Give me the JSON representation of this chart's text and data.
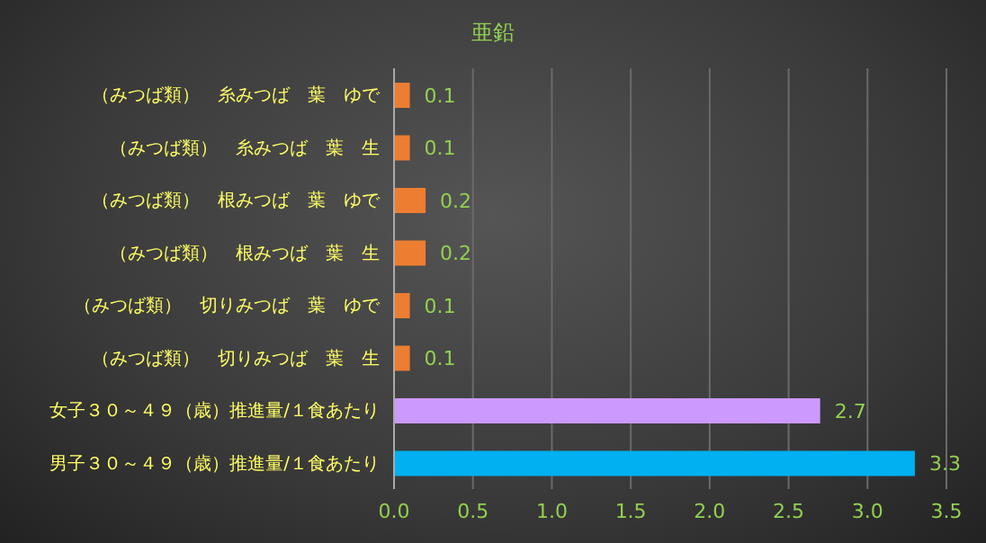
{
  "chart_data": {
    "type": "bar",
    "orientation": "horizontal",
    "title": "亜鉛",
    "categories": [
      "（みつば類）　糸みつば　葉　ゆで",
      "（みつば類）　糸みつば　葉　生",
      "（みつば類）　根みつば　葉　ゆで",
      "（みつば類）　根みつば　葉　生",
      "（みつば類）　切りみつば　葉　ゆで",
      "（みつば類）　切りみつば　葉　生",
      "女子３０～４９（歳）推進量/１食あたり",
      "男子３０～４９（歳）推進量/１食あたり"
    ],
    "values": [
      0.1,
      0.1,
      0.2,
      0.2,
      0.1,
      0.1,
      2.7,
      3.3
    ],
    "colors": [
      "#ed7d31",
      "#ed7d31",
      "#ed7d31",
      "#ed7d31",
      "#ed7d31",
      "#ed7d31",
      "#cc99ff",
      "#00b0f0"
    ],
    "data_labels": true,
    "xlim": [
      0,
      3.5
    ],
    "xticks": [
      {
        "value": 0,
        "label": "0.0"
      },
      {
        "value": 0.5,
        "label": "0.5"
      },
      {
        "value": 1,
        "label": "1.0"
      },
      {
        "value": 1.5,
        "label": "1.5"
      },
      {
        "value": 2,
        "label": "2.0"
      },
      {
        "value": 2.5,
        "label": "2.5"
      },
      {
        "value": 3,
        "label": "3.0"
      },
      {
        "value": 3.5,
        "label": "3.5"
      }
    ],
    "grid": "x"
  }
}
